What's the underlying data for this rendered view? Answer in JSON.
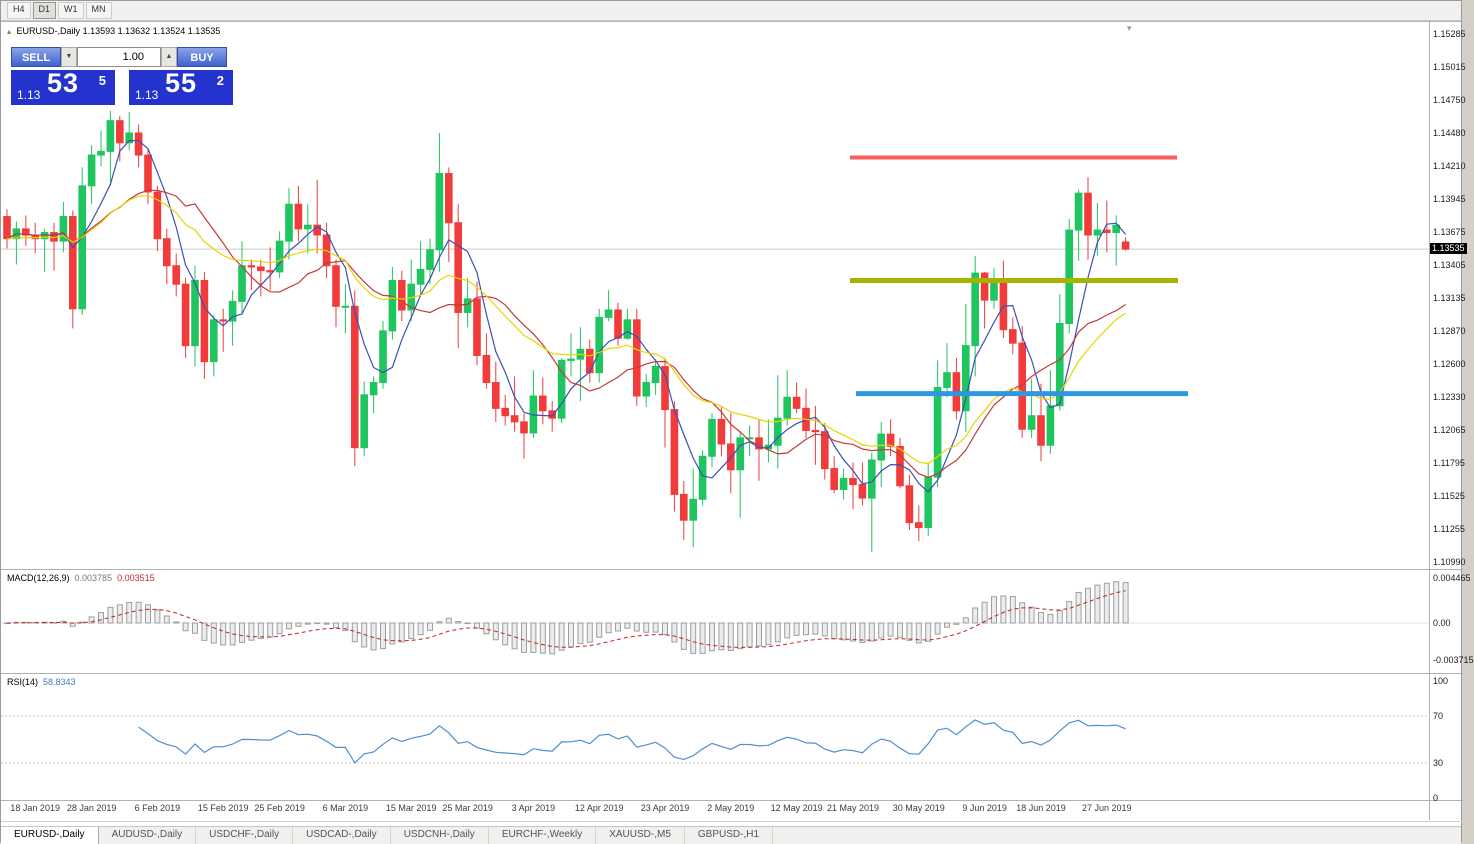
{
  "toolbar": {
    "timeframes": [
      {
        "label": "H4",
        "active": false
      },
      {
        "label": "D1",
        "active": true
      },
      {
        "label": "W1",
        "active": false
      },
      {
        "label": "MN",
        "active": false
      }
    ]
  },
  "chart": {
    "header": {
      "collapse_icon": "▴",
      "symbol_label": "EURUSD-,Daily",
      "open": "1.13593",
      "high": "1.13632",
      "low": "1.13524",
      "close": "1.13535"
    },
    "shift_marker_icon": "▾",
    "one_click": {
      "sell_label": "SELL",
      "buy_label": "BUY",
      "volume": "1.00",
      "spin_down_icon": "▼",
      "spin_up_icon": "▲",
      "bid": {
        "small": "1.13",
        "big": "53",
        "sup": "5"
      },
      "ask": {
        "small": "1.13",
        "big": "55",
        "sup": "2"
      }
    },
    "price_scale": {
      "labels": [
        "1.15285",
        "1.15015",
        "1.14750",
        "1.14480",
        "1.14210",
        "1.13945",
        "1.13675",
        "1.13405",
        "1.13135",
        "1.12870",
        "1.12600",
        "1.12330",
        "1.12065",
        "1.11795",
        "1.11525",
        "1.11255",
        "1.10990"
      ],
      "current": "1.13535"
    },
    "time_axis": [
      {
        "label": "18 Jan 2019",
        "i": 3
      },
      {
        "label": "28 Jan 2019",
        "i": 9
      },
      {
        "label": "6 Feb 2019",
        "i": 16
      },
      {
        "label": "15 Feb 2019",
        "i": 23
      },
      {
        "label": "25 Feb 2019",
        "i": 29
      },
      {
        "label": "6 Mar 2019",
        "i": 36
      },
      {
        "label": "15 Mar 2019",
        "i": 43
      },
      {
        "label": "25 Mar 2019",
        "i": 49
      },
      {
        "label": "3 Apr 2019",
        "i": 56
      },
      {
        "label": "12 Apr 2019",
        "i": 63
      },
      {
        "label": "23 Apr 2019",
        "i": 70
      },
      {
        "label": "2 May 2019",
        "i": 77
      },
      {
        "label": "12 May 2019",
        "i": 84
      },
      {
        "label": "21 May 2019",
        "i": 90
      },
      {
        "label": "30 May 2019",
        "i": 97
      },
      {
        "label": "9 Jun 2019",
        "i": 104
      },
      {
        "label": "18 Jun 2019",
        "i": 110
      },
      {
        "label": "27 Jun 2019",
        "i": 117
      }
    ]
  },
  "macd": {
    "label": "MACD(12,26,9)",
    "value": "0.003785",
    "signal_value": "0.003515",
    "scale": [
      "0.004465",
      "0.00",
      "-0.003715"
    ],
    "fast": 12,
    "slow": 26,
    "signal": 9,
    "histogram_color": "#9e9e9e",
    "signal_color": "#c22222"
  },
  "rsi": {
    "label": "RSI(14)",
    "value": "58.8343",
    "period": 14,
    "levels": [
      30,
      70
    ],
    "scale": [
      "100",
      "70",
      "30",
      "0"
    ],
    "line_color": "#4f8fce"
  },
  "tabs": [
    {
      "label": "EURUSD-,Daily",
      "active": true
    },
    {
      "label": "AUDUSD-,Daily",
      "active": false
    },
    {
      "label": "USDCHF-,Daily",
      "active": false
    },
    {
      "label": "USDCAD-,Daily",
      "active": false
    },
    {
      "label": "USDCNH-,Daily",
      "active": false
    },
    {
      "label": "EURCHF-,Weekly",
      "active": false
    },
    {
      "label": "XAUUSD-,M5",
      "active": false
    },
    {
      "label": "GBPUSD-,H1",
      "active": false
    }
  ],
  "chart_data": {
    "type": "candlestick",
    "symbol": "EURUSD",
    "timeframe": "Daily",
    "ylim": [
      1.1099,
      1.15285
    ],
    "bid_line_price": 1.13535,
    "candle_up_color": "#1fc55f",
    "candle_down_color": "#f23b3b",
    "moving_averages": [
      {
        "kind": "sma",
        "period": 5,
        "color": "#3a50b4"
      },
      {
        "kind": "sma",
        "period": 13,
        "color": "#c23b3b"
      },
      {
        "kind": "ema",
        "period": 21,
        "color": "#e8d400"
      }
    ],
    "h_lines": [
      {
        "price": 1.1428,
        "color": "#fb5b5b",
        "width": 4,
        "x1": 849,
        "x2": 1176
      },
      {
        "price": 1.1328,
        "color": "#a4b400",
        "width": 5,
        "x1": 849,
        "x2": 1177
      },
      {
        "price": 1.1236,
        "color": "#2f96e0",
        "width": 5,
        "x1": 855,
        "x2": 1187
      }
    ],
    "candles": [
      [
        1.138,
        1.1386,
        1.1354,
        1.1362
      ],
      [
        1.1362,
        1.1376,
        1.1341,
        1.137
      ],
      [
        1.137,
        1.1381,
        1.1356,
        1.1365
      ],
      [
        1.1365,
        1.1375,
        1.135,
        1.1362
      ],
      [
        1.1362,
        1.137,
        1.1335,
        1.1367
      ],
      [
        1.1367,
        1.1375,
        1.1336,
        1.136
      ],
      [
        1.136,
        1.1392,
        1.1351,
        1.138
      ],
      [
        1.138,
        1.1385,
        1.1289,
        1.1305
      ],
      [
        1.1305,
        1.142,
        1.13,
        1.1405
      ],
      [
        1.1405,
        1.1438,
        1.139,
        1.143
      ],
      [
        1.143,
        1.145,
        1.1421,
        1.1433
      ],
      [
        1.1433,
        1.1466,
        1.1405,
        1.1458
      ],
      [
        1.1458,
        1.1462,
        1.1425,
        1.144
      ],
      [
        1.144,
        1.1465,
        1.1434,
        1.1448
      ],
      [
        1.1448,
        1.1455,
        1.142,
        1.143
      ],
      [
        1.143,
        1.1435,
        1.139,
        1.14
      ],
      [
        1.14,
        1.1405,
        1.1352,
        1.1362
      ],
      [
        1.1362,
        1.137,
        1.1325,
        1.134
      ],
      [
        1.134,
        1.135,
        1.1315,
        1.1325
      ],
      [
        1.1325,
        1.133,
        1.1265,
        1.1275
      ],
      [
        1.1275,
        1.134,
        1.1258,
        1.1328
      ],
      [
        1.1328,
        1.1335,
        1.1248,
        1.1262
      ],
      [
        1.1262,
        1.13,
        1.125,
        1.1296
      ],
      [
        1.1296,
        1.1305,
        1.127,
        1.1295
      ],
      [
        1.1295,
        1.132,
        1.1275,
        1.1311
      ],
      [
        1.1311,
        1.136,
        1.13,
        1.134
      ],
      [
        1.134,
        1.1345,
        1.132,
        1.1339
      ],
      [
        1.1339,
        1.1345,
        1.1315,
        1.1336
      ],
      [
        1.1336,
        1.1355,
        1.132,
        1.1335
      ],
      [
        1.1335,
        1.1368,
        1.133,
        1.136
      ],
      [
        1.136,
        1.1403,
        1.1345,
        1.139
      ],
      [
        1.139,
        1.1405,
        1.136,
        1.137
      ],
      [
        1.137,
        1.139,
        1.135,
        1.1373
      ],
      [
        1.1373,
        1.141,
        1.135,
        1.1365
      ],
      [
        1.1365,
        1.1375,
        1.133,
        1.134
      ],
      [
        1.134,
        1.1345,
        1.129,
        1.1307
      ],
      [
        1.1307,
        1.1325,
        1.1285,
        1.1307
      ],
      [
        1.1307,
        1.132,
        1.1177,
        1.1192
      ],
      [
        1.1192,
        1.1246,
        1.1185,
        1.1235
      ],
      [
        1.1235,
        1.125,
        1.122,
        1.1245
      ],
      [
        1.1245,
        1.1295,
        1.124,
        1.1287
      ],
      [
        1.1287,
        1.1339,
        1.128,
        1.1328
      ],
      [
        1.1328,
        1.1336,
        1.1295,
        1.1304
      ],
      [
        1.1304,
        1.1345,
        1.1295,
        1.1325
      ],
      [
        1.1325,
        1.136,
        1.1315,
        1.1337
      ],
      [
        1.1337,
        1.1362,
        1.1325,
        1.1353
      ],
      [
        1.1353,
        1.1448,
        1.1335,
        1.1415
      ],
      [
        1.1415,
        1.142,
        1.1343,
        1.1375
      ],
      [
        1.1375,
        1.139,
        1.1273,
        1.1302
      ],
      [
        1.1302,
        1.133,
        1.129,
        1.1313
      ],
      [
        1.1313,
        1.1327,
        1.1259,
        1.1267
      ],
      [
        1.1267,
        1.1285,
        1.124,
        1.1245
      ],
      [
        1.1245,
        1.1262,
        1.1213,
        1.1224
      ],
      [
        1.1224,
        1.1235,
        1.121,
        1.1218
      ],
      [
        1.1218,
        1.125,
        1.1205,
        1.1213
      ],
      [
        1.1213,
        1.122,
        1.1183,
        1.1204
      ],
      [
        1.1204,
        1.1255,
        1.12,
        1.1234
      ],
      [
        1.1234,
        1.1249,
        1.1211,
        1.1222
      ],
      [
        1.1222,
        1.123,
        1.1205,
        1.1216
      ],
      [
        1.1216,
        1.1265,
        1.1212,
        1.1263
      ],
      [
        1.1263,
        1.1285,
        1.125,
        1.1264
      ],
      [
        1.1264,
        1.129,
        1.123,
        1.1272
      ],
      [
        1.1272,
        1.128,
        1.1245,
        1.1253
      ],
      [
        1.1253,
        1.1305,
        1.1245,
        1.1298
      ],
      [
        1.1298,
        1.132,
        1.1295,
        1.1304
      ],
      [
        1.1304,
        1.131,
        1.1275,
        1.1281
      ],
      [
        1.1281,
        1.1305,
        1.128,
        1.1296
      ],
      [
        1.1296,
        1.1305,
        1.1226,
        1.1234
      ],
      [
        1.1234,
        1.1252,
        1.1225,
        1.1245
      ],
      [
        1.1245,
        1.1264,
        1.1235,
        1.1258
      ],
      [
        1.1258,
        1.1265,
        1.1192,
        1.1223
      ],
      [
        1.1223,
        1.123,
        1.114,
        1.1154
      ],
      [
        1.1154,
        1.1165,
        1.1117,
        1.1133
      ],
      [
        1.1133,
        1.1175,
        1.1111,
        1.115
      ],
      [
        1.115,
        1.119,
        1.1145,
        1.1185
      ],
      [
        1.1185,
        1.122,
        1.1176,
        1.1215
      ],
      [
        1.1215,
        1.1225,
        1.1185,
        1.1195
      ],
      [
        1.1195,
        1.122,
        1.1155,
        1.1174
      ],
      [
        1.1174,
        1.1205,
        1.1135,
        1.12
      ],
      [
        1.12,
        1.121,
        1.1185,
        1.12
      ],
      [
        1.12,
        1.1215,
        1.1165,
        1.1191
      ],
      [
        1.1191,
        1.1215,
        1.118,
        1.1194
      ],
      [
        1.1194,
        1.1251,
        1.1175,
        1.1216
      ],
      [
        1.1216,
        1.1255,
        1.121,
        1.1233
      ],
      [
        1.1233,
        1.1245,
        1.122,
        1.1224
      ],
      [
        1.1224,
        1.124,
        1.12,
        1.1206
      ],
      [
        1.1206,
        1.1226,
        1.1178,
        1.1205
      ],
      [
        1.1205,
        1.1212,
        1.1166,
        1.1175
      ],
      [
        1.1175,
        1.1185,
        1.1155,
        1.1158
      ],
      [
        1.1158,
        1.1175,
        1.115,
        1.1167
      ],
      [
        1.1167,
        1.118,
        1.1142,
        1.1162
      ],
      [
        1.1162,
        1.118,
        1.1145,
        1.1151
      ],
      [
        1.1151,
        1.1188,
        1.1107,
        1.1182
      ],
      [
        1.1182,
        1.1213,
        1.116,
        1.1203
      ],
      [
        1.1203,
        1.1215,
        1.1185,
        1.1193
      ],
      [
        1.1193,
        1.12,
        1.1159,
        1.1161
      ],
      [
        1.1161,
        1.117,
        1.1125,
        1.1131
      ],
      [
        1.1131,
        1.1145,
        1.1116,
        1.1127
      ],
      [
        1.1127,
        1.118,
        1.112,
        1.1168
      ],
      [
        1.1168,
        1.1263,
        1.116,
        1.1241
      ],
      [
        1.1241,
        1.1277,
        1.1233,
        1.1253
      ],
      [
        1.1253,
        1.1265,
        1.1215,
        1.1222
      ],
      [
        1.1222,
        1.1309,
        1.1205,
        1.1275
      ],
      [
        1.1275,
        1.1348,
        1.125,
        1.1334
      ],
      [
        1.1334,
        1.1335,
        1.1289,
        1.1312
      ],
      [
        1.1312,
        1.1338,
        1.1305,
        1.1327
      ],
      [
        1.1327,
        1.1344,
        1.1281,
        1.1288
      ],
      [
        1.1288,
        1.1298,
        1.1268,
        1.1277
      ],
      [
        1.1277,
        1.1291,
        1.12,
        1.1207
      ],
      [
        1.1207,
        1.1248,
        1.12,
        1.1218
      ],
      [
        1.1218,
        1.1244,
        1.1181,
        1.1194
      ],
      [
        1.1194,
        1.1255,
        1.1187,
        1.1226
      ],
      [
        1.1226,
        1.1317,
        1.1222,
        1.1293
      ],
      [
        1.1293,
        1.1378,
        1.1285,
        1.1369
      ],
      [
        1.1369,
        1.1402,
        1.1344,
        1.1399
      ],
      [
        1.1399,
        1.1412,
        1.1345,
        1.1365
      ],
      [
        1.1365,
        1.1391,
        1.1348,
        1.1369
      ],
      [
        1.1369,
        1.1393,
        1.1351,
        1.1367
      ],
      [
        1.1367,
        1.1381,
        1.134,
        1.1373
      ],
      [
        1.13593,
        1.13632,
        1.13524,
        1.13535
      ]
    ]
  }
}
